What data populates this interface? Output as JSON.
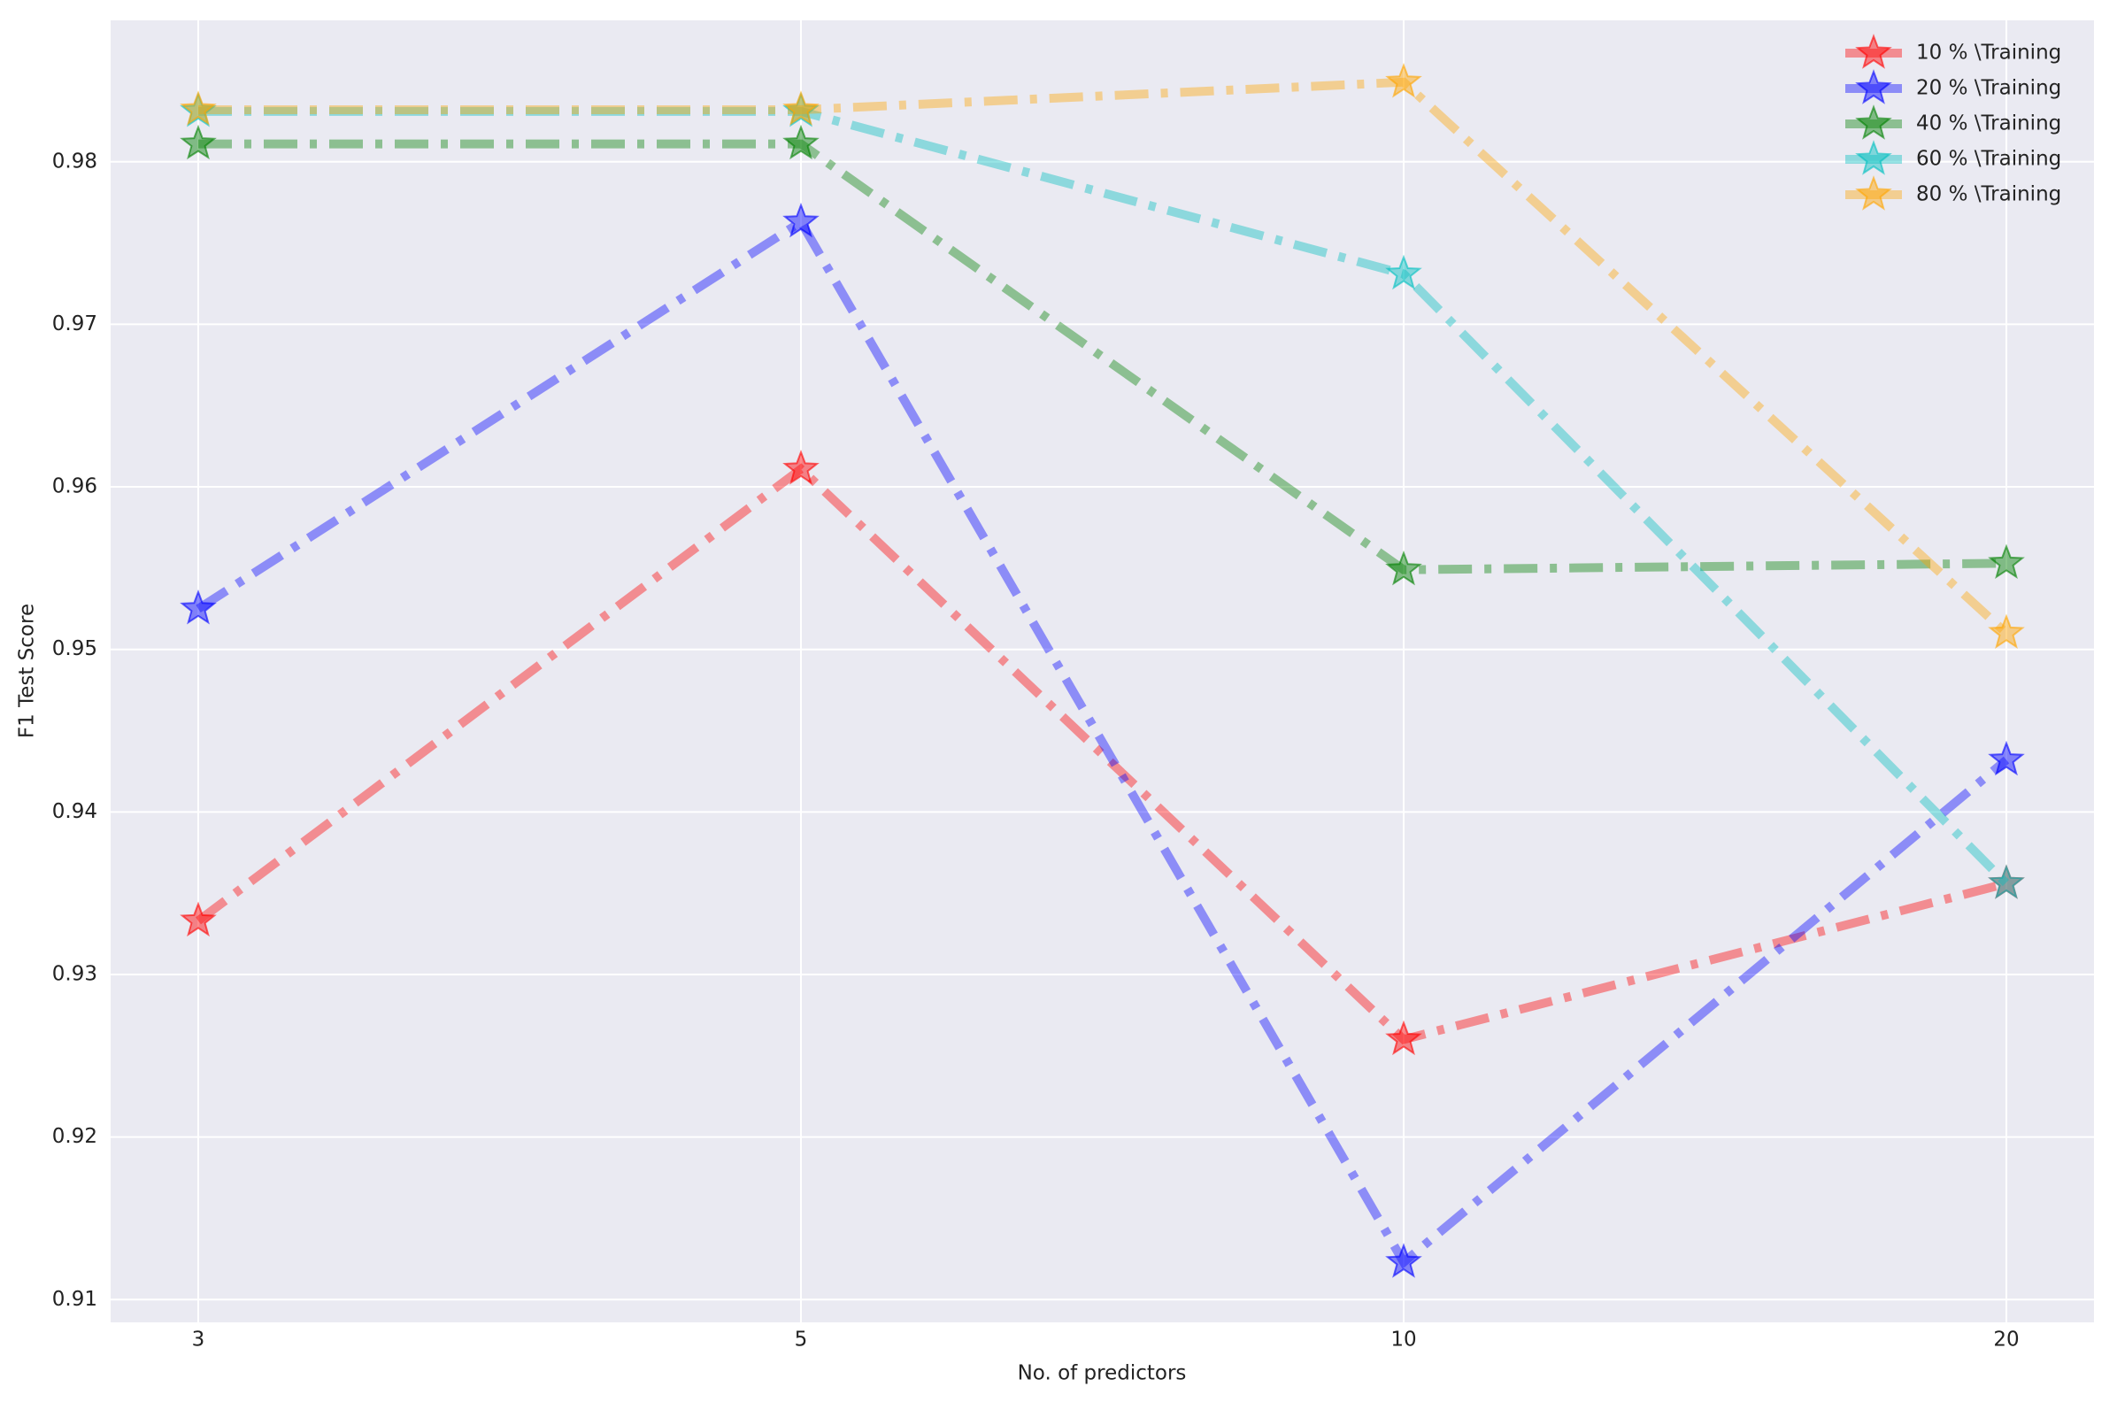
{
  "chart_data": {
    "type": "line",
    "xlabel": "No. of predictors",
    "ylabel": "F1 Test Score",
    "categories": [
      "3",
      "5",
      "10",
      "20"
    ],
    "series": [
      {
        "name": "10 % \\Training",
        "color": "#ff0000",
        "values": [
          0.9333,
          0.9611,
          0.926,
          0.9356
        ]
      },
      {
        "name": "20 % \\Training",
        "color": "#0000ff",
        "values": [
          0.9525,
          0.9763,
          0.9123,
          0.9432
        ]
      },
      {
        "name": "40 % \\Training",
        "color": "#008000",
        "values": [
          0.9811,
          0.9811,
          0.9549,
          0.9553
        ]
      },
      {
        "name": "60 % \\Training",
        "color": "#00bfbf",
        "values": [
          0.9831,
          0.9831,
          0.9731,
          0.9356
        ]
      },
      {
        "name": "80 % \\Training",
        "color": "#ffa500",
        "values": [
          0.9832,
          0.9832,
          0.9849,
          0.951
        ]
      }
    ],
    "ylim": [
      0.9086,
      0.9887
    ],
    "yticks": [
      0.91,
      0.92,
      0.93,
      0.94,
      0.95,
      0.96,
      0.97,
      0.98
    ],
    "grid": true,
    "legend": "upper right"
  }
}
